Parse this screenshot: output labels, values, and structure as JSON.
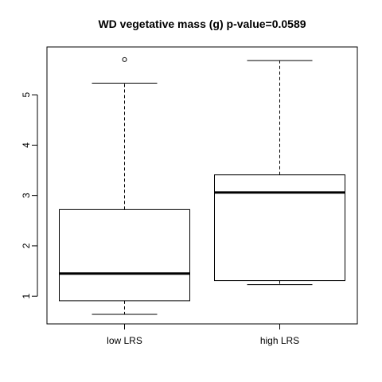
{
  "chart_data": {
    "type": "boxplot",
    "title": "WD vegetative mass (g) p-value=0.0589",
    "xlabel": "",
    "ylabel": "",
    "ylim": [
      0.45,
      5.95
    ],
    "y_ticks": [
      1,
      2,
      3,
      4,
      5
    ],
    "grid": false,
    "categories": [
      "low LRS",
      "high LRS"
    ],
    "boxes": [
      {
        "category": "low LRS",
        "whisker_low": 0.64,
        "q1": 0.91,
        "median": 1.45,
        "q3": 2.72,
        "whisker_high": 5.23,
        "outliers": [
          5.7
        ]
      },
      {
        "category": "high LRS",
        "whisker_low": 1.23,
        "q1": 1.31,
        "median": 3.06,
        "q3": 3.41,
        "whisker_high": 5.68,
        "outliers": []
      }
    ]
  }
}
